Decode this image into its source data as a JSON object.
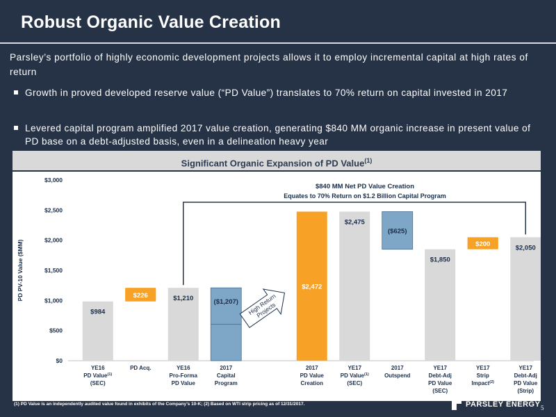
{
  "slide": {
    "title": "Robust Organic Value Creation",
    "intro": "Parsley’s portfolio of highly economic development projects allows it to employ incremental capital at high rates of return",
    "bullets": [
      "Growth in proved developed reserve value (“PD Value”) translates to 70% return on capital invested in 2017",
      "Levered capital program amplified 2017 value creation, generating $840 MM organic increase in present value of PD base on a debt-adjusted basis, even in a delineation heavy year"
    ],
    "banner": "Significant Organic Expansion of PD Value",
    "banner_sup": "(1)",
    "footnote": "(1) PD Value is an independently audited value found in exhibits of the Company’s 10-K; (2) Based on WTI strip pricing as of 12/31/2017.",
    "logo_text": "PARSLEY ENERGY",
    "page_number": "5"
  },
  "colors": {
    "background": "#263347",
    "bar_gray": "#d9d9d9",
    "bar_orange": "#f7a226",
    "bar_blue": "#7ea7c7",
    "banner": "#d9d9d9"
  },
  "chart_data": {
    "type": "bar",
    "subtype": "waterfall",
    "ylabel": "PD PV-10 Value ($MM)",
    "ylim": [
      0,
      3000
    ],
    "y_ticks": [
      "$0",
      "$500",
      "$1,000",
      "$1,500",
      "$2,000",
      "$2,500",
      "$3,000"
    ],
    "grid": false,
    "annotation_line1": "$840 MM Net PD Value Creation",
    "annotation_line2": "Equates to 70% Return on $1.2 Billion Capital Program",
    "arrow_label": "High Return Projects",
    "bars": [
      {
        "category": [
          "YE16",
          "PD Value(1)",
          "(SEC)"
        ],
        "kind": "total",
        "color": "gray",
        "base": 0,
        "top": 984,
        "label": "$984",
        "label_color": "#1a2d48"
      },
      {
        "category": [
          "PD Acq."
        ],
        "kind": "increase",
        "color": "orange",
        "base": 984,
        "top": 1210,
        "label": "$226",
        "label_color": "#ffffff"
      },
      {
        "category": [
          "YE16",
          "Pro-Forma",
          "PD Value"
        ],
        "kind": "total",
        "color": "gray",
        "base": 0,
        "top": 1210,
        "label": "$1,210",
        "label_color": "#1a2d48"
      },
      {
        "category": [
          "2017",
          "Capital",
          "Program"
        ],
        "kind": "decrease",
        "color": "blue",
        "base": 0,
        "top": 1210,
        "label": "($1,207)",
        "label_color": "#1a2d48"
      },
      {
        "category": [
          "2017",
          "PD Value",
          "Creation"
        ],
        "kind": "increase",
        "color": "orange",
        "base": 3,
        "top": 2475,
        "label": "$2,472",
        "label_color": "#ffffff"
      },
      {
        "category": [
          "YE17",
          "PD Value(1)",
          "(SEC)"
        ],
        "kind": "total",
        "color": "gray",
        "base": 0,
        "top": 2475,
        "label": "$2,475",
        "label_color": "#1a2d48"
      },
      {
        "category": [
          "2017",
          "Outspend"
        ],
        "kind": "decrease",
        "color": "blue",
        "base": 1850,
        "top": 2475,
        "label": "($625)",
        "label_color": "#1a2d48"
      },
      {
        "category": [
          "YE17",
          "Debt-Adj",
          "PD Value",
          "(SEC)"
        ],
        "kind": "total",
        "color": "gray",
        "base": 0,
        "top": 1850,
        "label": "$1,850",
        "label_color": "#1a2d48"
      },
      {
        "category": [
          "YE17",
          "Strip",
          "Impact(2)"
        ],
        "kind": "increase",
        "color": "orange",
        "base": 1850,
        "top": 2050,
        "label": "$200",
        "label_color": "#ffffff"
      },
      {
        "category": [
          "YE17",
          "Debt-Adj",
          "PD Value",
          "(Strip)"
        ],
        "kind": "total",
        "color": "gray",
        "base": 0,
        "top": 2050,
        "label": "$2,050",
        "label_color": "#1a2d48"
      }
    ]
  }
}
